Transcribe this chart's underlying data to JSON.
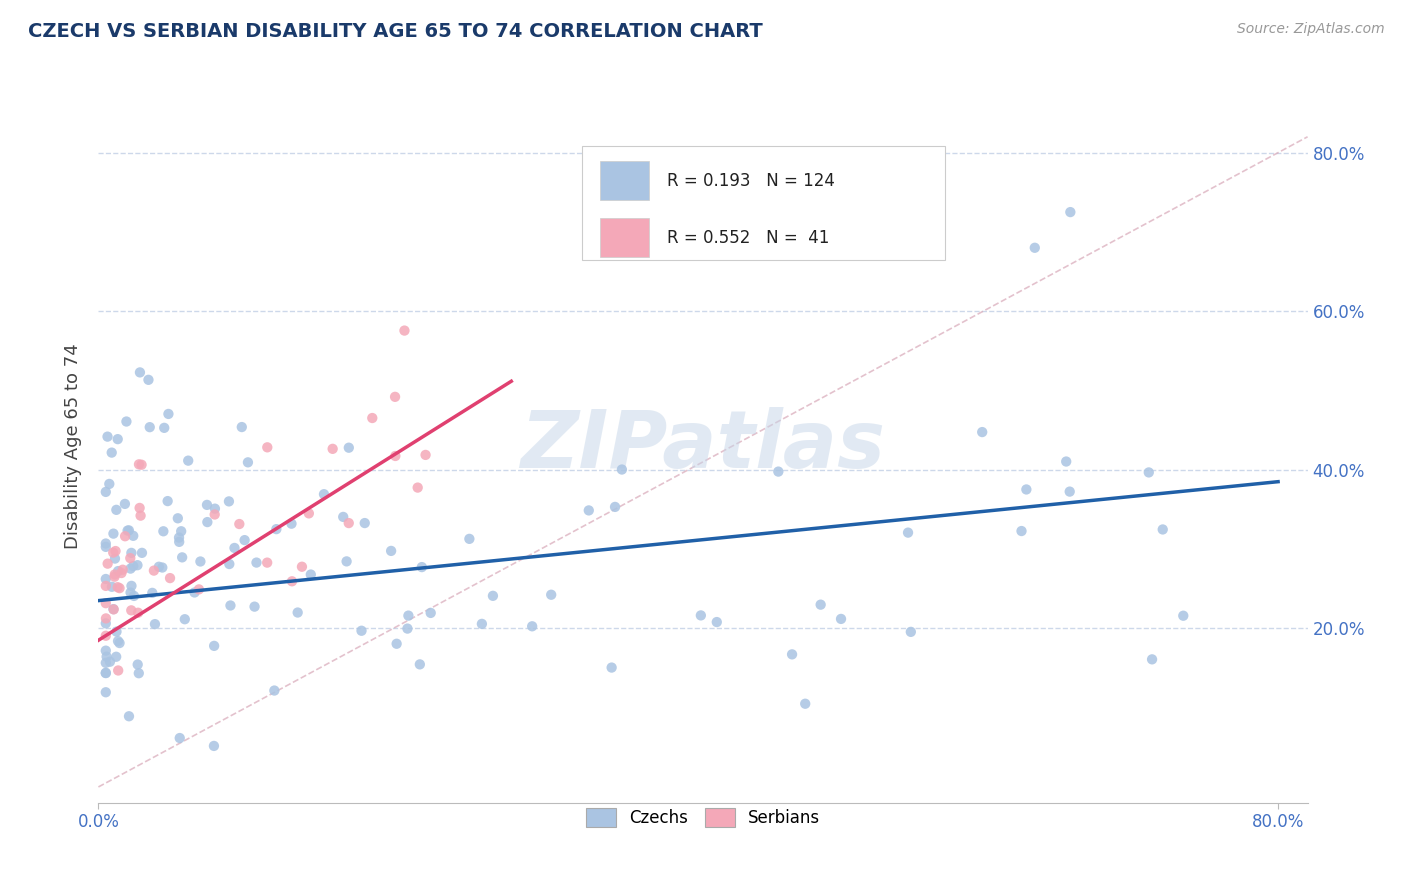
{
  "title": "CZECH VS SERBIAN DISABILITY AGE 65 TO 74 CORRELATION CHART",
  "source_text": "Source: ZipAtlas.com",
  "ylabel": "Disability Age 65 to 74",
  "xlim": [
    0.0,
    0.82
  ],
  "ylim": [
    -0.02,
    0.88
  ],
  "ytick_values": [
    0.2,
    0.4,
    0.6,
    0.8
  ],
  "czech_color": "#aac4e2",
  "serbian_color": "#f4a8b8",
  "czech_line_color": "#2060a8",
  "serbian_line_color": "#e04070",
  "diagonal_color": "#d8a8b8",
  "R_czech": 0.193,
  "N_czech": 124,
  "R_serbian": 0.552,
  "N_serbian": 41,
  "legend_label_czech": "Czechs",
  "legend_label_serbian": "Serbians",
  "watermark": "ZIPatlas",
  "background_color": "#ffffff",
  "grid_color": "#c8d4e8",
  "tick_color": "#4472c4",
  "title_color": "#1a3a6a",
  "source_color": "#999999"
}
